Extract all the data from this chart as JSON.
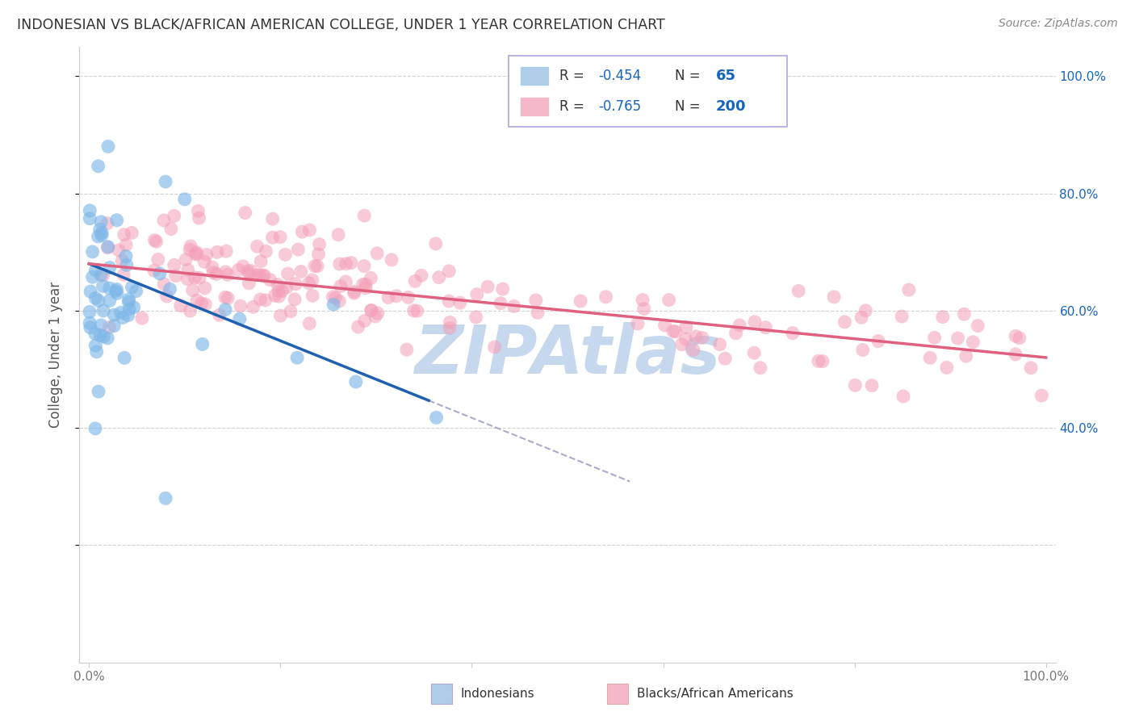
{
  "title": "INDONESIAN VS BLACK/AFRICAN AMERICAN COLLEGE, UNDER 1 YEAR CORRELATION CHART",
  "source": "Source: ZipAtlas.com",
  "ylabel": "College, Under 1 year",
  "watermark": "ZIPAtlas",
  "legend_label_blue": "Indonesians",
  "legend_label_pink": "Blacks/African Americans",
  "R_blue": -0.454,
  "N_blue": 65,
  "R_pink": -0.765,
  "N_pink": 200,
  "blue_scatter_color": "#80b8e8",
  "pink_scatter_color": "#f4a0b8",
  "blue_line_color": "#2060b0",
  "pink_line_color": "#e06080",
  "blue_legend_patch": "#aecde8",
  "pink_legend_patch": "#f4b8c8",
  "grid_color": "#cccccc",
  "background_color": "#ffffff",
  "title_color": "#333333",
  "source_color": "#888888",
  "watermark_color": "#c5d8ee",
  "right_tick_color": "#1565C0",
  "R_val_color": "#1565C0",
  "N_val_color": "#1565C0",
  "legend_border_color": "#aaaadd",
  "axis_tick_color": "#777777"
}
